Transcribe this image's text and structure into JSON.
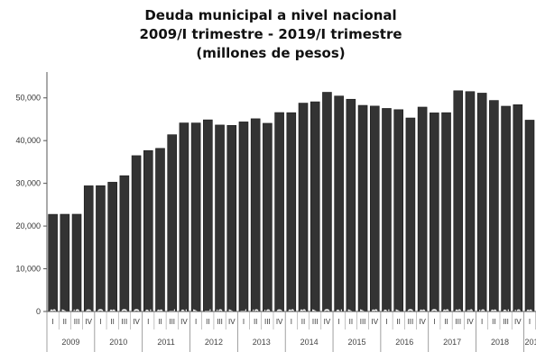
{
  "chart_data": {
    "type": "bar",
    "title_lines": [
      "Deuda municipal a nivel nacional",
      "2009/I trimestre - 2019/I trimestre",
      "(millones de pesos)"
    ],
    "ylim": [
      0,
      55000
    ],
    "yticks": [
      "0",
      "10,000",
      "20,000",
      "30,000",
      "40,000",
      "50,000"
    ],
    "ytick_values": [
      0,
      10000,
      20000,
      30000,
      40000,
      50000
    ],
    "years": [
      "2009",
      "2010",
      "2011",
      "2012",
      "2013",
      "2014",
      "2015",
      "2016",
      "2017",
      "2018",
      "201"
    ],
    "quarter_labels": [
      "I",
      "II",
      "III",
      "IV",
      "I",
      "II",
      "III",
      "IV",
      "I",
      "II",
      "III",
      "IV",
      "I",
      "II",
      "III",
      "IV",
      "I",
      "II",
      "III",
      "IV",
      "I",
      "II",
      "III",
      "IV",
      "I",
      "II",
      "III",
      "IV",
      "I",
      "II",
      "III",
      "IV",
      "I",
      "II",
      "III",
      "IV",
      "I",
      "II",
      "III",
      "IV",
      "I"
    ],
    "values": [
      22741.8,
      22757.7,
      22764.6,
      29417.9,
      29441.0,
      30259.3,
      31788.0,
      36476.0,
      37672.2,
      38183.3,
      41378.1,
      44134.2,
      44124.7,
      44859.1,
      43646.6,
      43558.7,
      44378.1,
      45116.6,
      44051.5,
      46564.9,
      46537.8,
      48772.8,
      49083.7,
      51310.0,
      50433.2,
      49681.7,
      48249.7,
      48080.8,
      47530.2,
      47243.7,
      45300.0,
      47841.3,
      46490.0,
      46537.8,
      51672.8,
      51470.4,
      51111.5,
      49395.3,
      48052.2,
      48404.5,
      44786.3
    ],
    "value_labels": [
      "22,741.8",
      "22,757.7",
      "22,764.6",
      "29,417.9",
      "29,441.0",
      "30,259.3",
      "31,788.0",
      "36,476.0",
      "37,672.2",
      "38,183.3",
      "41,378.1",
      "44,134.2",
      "44,124.7",
      "44,859.1",
      "43,646.6",
      "43,558.7",
      "44,378.1",
      "45,116.6",
      "44,051.5",
      "46,564.9",
      "46,537.8",
      "48,772.8",
      "49,083.7",
      "51,310.0",
      "50,433.2",
      "49,681.7",
      "48,249.7",
      "48,080.8",
      "47,530.2",
      "47,243.7",
      "45,300.0",
      "47,841.3",
      "46,490.0",
      "46,537.8",
      "51,672.8",
      "51,470.4",
      "51,111.5",
      "49,395.3",
      "48,052.2",
      "48,404.5",
      "44,786.3"
    ],
    "colors": {
      "bar": "#333333",
      "bar_edge": "#1a1a1a",
      "label": "#ffffff",
      "axis": "#555555"
    },
    "grid": false
  }
}
